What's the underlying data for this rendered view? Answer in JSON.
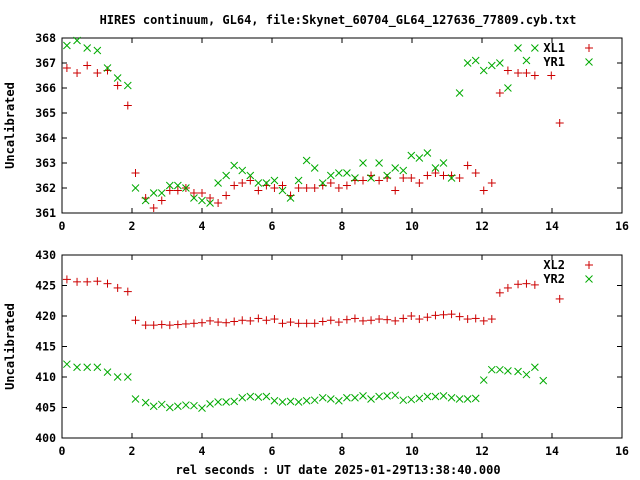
{
  "title": "HIRES continuum, GL64, file:Skynet_60704_GL64_127636_77809.cyb.txt",
  "xlabel": "rel seconds : UT date 2025-01-29T13:38:40.000",
  "chart_data": [
    {
      "type": "scatter",
      "ylabel": "Uncalibrated",
      "xlim": [
        0,
        16
      ],
      "ylim": [
        361,
        368
      ],
      "x_ticks": [
        "0",
        "2",
        "4",
        "6",
        "8",
        "10",
        "12",
        "14",
        "16"
      ],
      "y_ticks": [
        "361",
        "362",
        "363",
        "364",
        "365",
        "366",
        "367",
        "368"
      ],
      "legend_position": "top-right",
      "series": [
        {
          "name": "XL1",
          "marker": "plus",
          "color": "#cc0000",
          "x": [
            0.14,
            0.43,
            0.72,
            1.01,
            1.3,
            1.59,
            1.88,
            2.1,
            2.39,
            2.62,
            2.85,
            3.08,
            3.31,
            3.54,
            3.77,
            4.0,
            4.23,
            4.46,
            4.69,
            4.92,
            5.15,
            5.38,
            5.61,
            5.84,
            6.07,
            6.3,
            6.53,
            6.76,
            6.99,
            7.22,
            7.45,
            7.68,
            7.91,
            8.14,
            8.37,
            8.6,
            8.83,
            9.06,
            9.29,
            9.52,
            9.75,
            9.98,
            10.21,
            10.44,
            10.67,
            10.9,
            11.13,
            11.36,
            11.59,
            11.82,
            12.05,
            12.28,
            12.51,
            12.74,
            13.03,
            13.27,
            13.51,
            13.75,
            13.98,
            14.22,
            14.45,
            14.75,
            15.05
          ],
          "y": [
            366.8,
            366.6,
            366.9,
            366.6,
            366.7,
            366.1,
            365.3,
            362.6,
            361.6,
            361.2,
            361.5,
            361.9,
            361.9,
            362.0,
            361.8,
            361.8,
            361.6,
            361.4,
            361.7,
            362.1,
            362.2,
            362.3,
            361.9,
            362.1,
            362.0,
            362.1,
            361.7,
            362.0,
            362.0,
            362.0,
            362.1,
            362.2,
            362.0,
            362.1,
            362.3,
            362.3,
            362.5,
            362.3,
            362.4,
            361.9,
            362.4,
            362.4,
            362.2,
            362.5,
            362.6,
            362.5,
            362.5,
            362.4,
            362.9,
            362.6,
            361.9,
            362.2,
            365.8,
            366.7,
            366.6,
            366.6,
            366.5,
            366.8,
            366.5,
            364.6,
            367.6,
            367.6,
            367.6
          ],
          "note_unused": ""
        },
        {
          "name": "YR1",
          "marker": "cross",
          "color": "#00aa00",
          "x": [
            0.14,
            0.43,
            0.72,
            1.01,
            1.3,
            1.59,
            1.88,
            2.1,
            2.39,
            2.62,
            2.85,
            3.08,
            3.31,
            3.54,
            3.77,
            4.0,
            4.23,
            4.46,
            4.69,
            4.92,
            5.15,
            5.38,
            5.61,
            5.84,
            6.07,
            6.3,
            6.53,
            6.76,
            6.99,
            7.22,
            7.45,
            7.68,
            7.91,
            8.14,
            8.37,
            8.6,
            8.83,
            9.06,
            9.29,
            9.52,
            9.75,
            9.98,
            10.21,
            10.44,
            10.67,
            10.9,
            11.13,
            11.36,
            11.59,
            11.82,
            12.05,
            12.28,
            12.51,
            12.74,
            13.03,
            13.27,
            13.51,
            13.75,
            13.98,
            14.22,
            14.45,
            14.75,
            15.05
          ],
          "y": [
            367.7,
            367.9,
            367.6,
            367.5,
            366.8,
            366.4,
            366.1,
            362.0,
            361.5,
            361.8,
            361.8,
            362.1,
            362.1,
            362.0,
            361.6,
            361.5,
            361.4,
            362.2,
            362.5,
            362.9,
            362.7,
            362.5,
            362.2,
            362.2,
            362.3,
            361.9,
            361.6,
            362.3,
            363.1,
            362.8,
            362.2,
            362.5,
            362.6,
            362.6,
            362.4,
            363.0,
            362.4,
            363.0,
            362.5,
            362.8,
            362.7,
            363.3,
            363.2,
            363.4,
            362.8,
            363.0,
            362.4,
            365.8,
            367.0,
            367.1,
            366.7,
            366.9,
            367.0,
            366.0,
            367.6,
            367.1,
            367.6,
            367.6,
            367.6,
            367.6,
            367.6,
            367.6,
            367.6
          ],
          "note_unused": ""
        }
      ]
    },
    {
      "type": "scatter",
      "ylabel": "Uncalibrated",
      "xlim": [
        0,
        16
      ],
      "ylim": [
        400,
        430
      ],
      "x_ticks": [
        "0",
        "2",
        "4",
        "6",
        "8",
        "10",
        "12",
        "14",
        "16"
      ],
      "y_ticks": [
        "400",
        "405",
        "410",
        "415",
        "420",
        "425",
        "430"
      ],
      "legend_position": "top-right",
      "series": [
        {
          "name": "XL2",
          "marker": "plus",
          "color": "#cc0000",
          "x": [
            0.14,
            0.43,
            0.72,
            1.01,
            1.3,
            1.59,
            1.88,
            2.1,
            2.39,
            2.62,
            2.85,
            3.08,
            3.31,
            3.54,
            3.77,
            4.0,
            4.23,
            4.46,
            4.69,
            4.92,
            5.15,
            5.38,
            5.61,
            5.84,
            6.07,
            6.3,
            6.53,
            6.76,
            6.99,
            7.22,
            7.45,
            7.68,
            7.91,
            8.14,
            8.37,
            8.6,
            8.83,
            9.06,
            9.29,
            9.52,
            9.75,
            9.98,
            10.21,
            10.44,
            10.67,
            10.9,
            11.13,
            11.36,
            11.59,
            11.82,
            12.05,
            12.28,
            12.51,
            12.74,
            13.03,
            13.27,
            13.51,
            13.75,
            13.98,
            14.22,
            14.45,
            14.75,
            15.05
          ],
          "y": [
            426.0,
            425.6,
            425.6,
            425.7,
            425.3,
            424.6,
            424.0,
            419.3,
            418.5,
            418.5,
            418.6,
            418.5,
            418.6,
            418.7,
            418.8,
            418.9,
            419.2,
            419.0,
            418.9,
            419.1,
            419.3,
            419.2,
            419.6,
            419.3,
            419.5,
            418.8,
            419.0,
            418.8,
            418.8,
            418.8,
            419.1,
            419.3,
            419.0,
            419.4,
            419.6,
            419.2,
            419.3,
            419.5,
            419.4,
            419.2,
            419.6,
            420.0,
            419.5,
            419.8,
            420.1,
            420.2,
            420.3,
            419.9,
            419.5,
            419.6,
            419.2,
            419.5,
            423.8,
            424.6,
            425.2,
            425.3,
            425.1,
            425.0,
            425.2,
            422.8,
            428.4,
            428.4,
            428.4
          ],
          "note_unused": ""
        },
        {
          "name": "YR2",
          "marker": "cross",
          "color": "#00aa00",
          "x": [
            0.14,
            0.43,
            0.72,
            1.01,
            1.3,
            1.59,
            1.88,
            2.1,
            2.39,
            2.62,
            2.85,
            3.08,
            3.31,
            3.54,
            3.77,
            4.0,
            4.23,
            4.46,
            4.69,
            4.92,
            5.15,
            5.38,
            5.61,
            5.84,
            6.07,
            6.3,
            6.53,
            6.76,
            6.99,
            7.22,
            7.45,
            7.68,
            7.91,
            8.14,
            8.37,
            8.6,
            8.83,
            9.06,
            9.29,
            9.52,
            9.75,
            9.98,
            10.21,
            10.44,
            10.67,
            10.9,
            11.13,
            11.36,
            11.59,
            11.82,
            12.05,
            12.28,
            12.51,
            12.74,
            13.03,
            13.27,
            13.51,
            13.75,
            13.98,
            14.22,
            14.45,
            14.75,
            15.05
          ],
          "y": [
            412.1,
            411.6,
            411.6,
            411.6,
            410.8,
            410.0,
            410.0,
            406.4,
            405.8,
            405.2,
            405.5,
            405.0,
            405.2,
            405.4,
            405.3,
            404.9,
            405.6,
            405.9,
            405.9,
            406.0,
            406.6,
            406.8,
            406.7,
            406.8,
            406.1,
            405.9,
            406.0,
            405.9,
            406.1,
            406.2,
            406.6,
            406.4,
            406.1,
            406.6,
            406.6,
            406.9,
            406.4,
            406.8,
            406.9,
            407.0,
            406.2,
            406.3,
            406.5,
            406.8,
            406.8,
            406.9,
            406.6,
            406.4,
            406.4,
            406.5,
            409.5,
            411.2,
            411.2,
            411.0,
            410.9,
            410.4,
            411.6,
            409.4,
            426.4,
            426.4,
            426.4,
            426.4,
            426.4
          ],
          "note_unused": ""
        }
      ]
    }
  ]
}
